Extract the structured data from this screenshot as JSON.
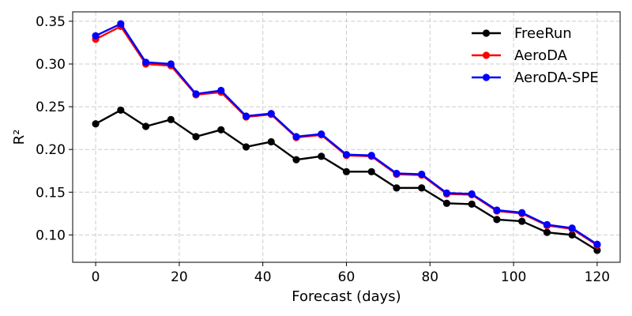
{
  "chart_data": {
    "type": "line",
    "xlabel": "Forecast (days)",
    "ylabel": "R²",
    "xlim": [
      -5.5,
      125.5
    ],
    "ylim": [
      0.068,
      0.361
    ],
    "x_ticks": [
      0,
      20,
      40,
      60,
      80,
      100,
      120
    ],
    "y_ticks": [
      0.1,
      0.15,
      0.2,
      0.25,
      0.3,
      0.35
    ],
    "x_tick_labels": [
      "0",
      "20",
      "40",
      "60",
      "80",
      "100",
      "120"
    ],
    "y_tick_labels": [
      "0.10",
      "0.15",
      "0.20",
      "0.25",
      "0.30",
      "0.35"
    ],
    "grid": true,
    "legend_position": "top-right",
    "x": [
      0,
      6,
      12,
      18,
      24,
      30,
      36,
      42,
      48,
      54,
      60,
      66,
      72,
      78,
      84,
      90,
      96,
      102,
      108,
      114,
      120
    ],
    "series": [
      {
        "name": "FreeRun",
        "color": "#000000",
        "values": [
          0.23,
          0.246,
          0.227,
          0.235,
          0.215,
          0.223,
          0.203,
          0.209,
          0.188,
          0.192,
          0.174,
          0.174,
          0.155,
          0.155,
          0.137,
          0.136,
          0.118,
          0.116,
          0.103,
          0.1,
          0.082
        ]
      },
      {
        "name": "AeroDA",
        "color": "#ff0000",
        "values": [
          0.329,
          0.344,
          0.3,
          0.298,
          0.264,
          0.267,
          0.238,
          0.241,
          0.214,
          0.217,
          0.193,
          0.192,
          0.171,
          0.17,
          0.148,
          0.147,
          0.128,
          0.125,
          0.111,
          0.107,
          0.088
        ]
      },
      {
        "name": "AeroDA-SPE",
        "color": "#0000ff",
        "values": [
          0.333,
          0.347,
          0.302,
          0.3,
          0.265,
          0.269,
          0.239,
          0.242,
          0.215,
          0.218,
          0.194,
          0.193,
          0.172,
          0.171,
          0.149,
          0.148,
          0.129,
          0.126,
          0.112,
          0.108,
          0.089
        ]
      }
    ]
  }
}
